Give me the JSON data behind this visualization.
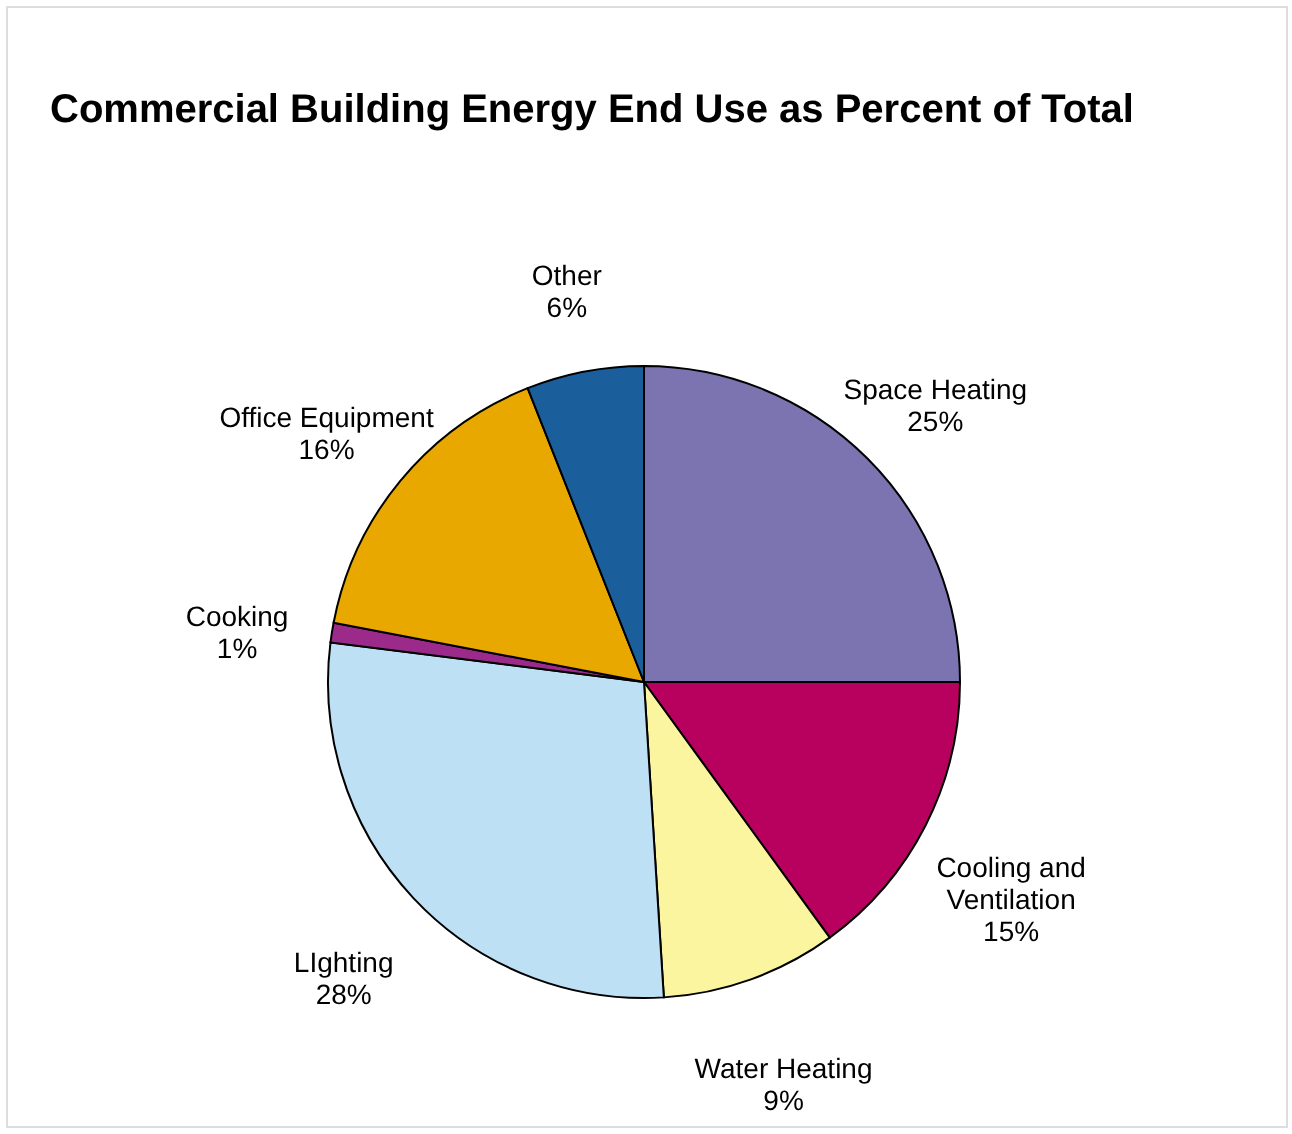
{
  "chart_data": {
    "type": "pie",
    "title": "Commercial Building Energy End Use as Percent of Total",
    "categories": [
      "Space Heating",
      "Cooling and Ventilation",
      "Water Heating",
      "LIghting",
      "Cooking",
      "Office Equipment",
      "Other"
    ],
    "values": [
      25,
      15,
      9,
      28,
      1,
      16,
      6
    ],
    "value_labels": [
      "25%",
      "15%",
      "9%",
      "28%",
      "1%",
      "16%",
      "6%"
    ],
    "colors": [
      "#7b74b0",
      "#b8005e",
      "#fbf5a0",
      "#bde0f5",
      "#9b2a8a",
      "#e8a800",
      "#1a5e9c"
    ]
  }
}
